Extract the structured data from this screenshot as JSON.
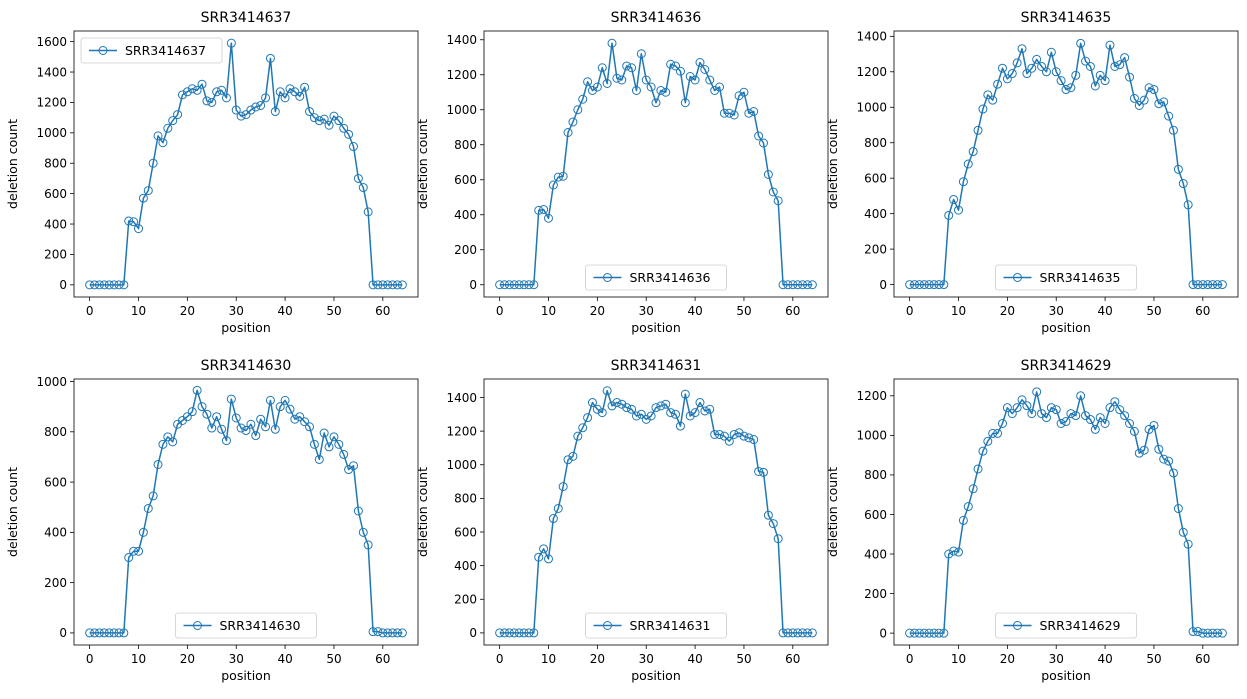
{
  "chart_data": [
    {
      "type": "line",
      "title": "SRR3414637",
      "xlabel": "position",
      "ylabel": "deletion count",
      "legend_position": "upper left",
      "color": "#1f77b4",
      "xlim": [
        -3.2,
        67.2
      ],
      "ylim": [
        -80,
        1670
      ],
      "xticks": [
        0,
        10,
        20,
        30,
        40,
        50,
        60
      ],
      "yticks": [
        0,
        200,
        400,
        600,
        800,
        1000,
        1200,
        1400,
        1600
      ],
      "series": [
        {
          "name": "SRR3414637",
          "x": [
            0,
            1,
            2,
            3,
            4,
            5,
            6,
            7,
            8,
            9,
            10,
            11,
            12,
            13,
            14,
            15,
            16,
            17,
            18,
            19,
            20,
            21,
            22,
            23,
            24,
            25,
            26,
            27,
            28,
            29,
            30,
            31,
            32,
            33,
            34,
            35,
            36,
            37,
            38,
            39,
            40,
            41,
            42,
            43,
            44,
            45,
            46,
            47,
            48,
            49,
            50,
            51,
            52,
            53,
            54,
            55,
            56,
            57,
            58,
            59,
            60,
            61,
            62,
            63,
            64
          ],
          "y": [
            0,
            0,
            0,
            0,
            0,
            0,
            0,
            0,
            420,
            415,
            370,
            570,
            620,
            800,
            980,
            935,
            1030,
            1080,
            1120,
            1250,
            1270,
            1290,
            1280,
            1320,
            1210,
            1200,
            1270,
            1280,
            1230,
            1590,
            1150,
            1110,
            1120,
            1150,
            1170,
            1180,
            1230,
            1490,
            1140,
            1270,
            1230,
            1290,
            1270,
            1240,
            1300,
            1140,
            1100,
            1080,
            1090,
            1050,
            1110,
            1080,
            1030,
            990,
            910,
            700,
            640,
            480,
            0,
            0,
            0,
            0,
            0,
            0,
            0
          ]
        }
      ]
    },
    {
      "type": "line",
      "title": "SRR3414636",
      "xlabel": "position",
      "ylabel": "deletion count",
      "legend_position": "lower center",
      "color": "#1f77b4",
      "xlim": [
        -3.2,
        67.2
      ],
      "ylim": [
        -70,
        1450
      ],
      "xticks": [
        0,
        10,
        20,
        30,
        40,
        50,
        60
      ],
      "yticks": [
        0,
        200,
        400,
        600,
        800,
        1000,
        1200,
        1400
      ],
      "series": [
        {
          "name": "SRR3414636",
          "x": [
            0,
            1,
            2,
            3,
            4,
            5,
            6,
            7,
            8,
            9,
            10,
            11,
            12,
            13,
            14,
            15,
            16,
            17,
            18,
            19,
            20,
            21,
            22,
            23,
            24,
            25,
            26,
            27,
            28,
            29,
            30,
            31,
            32,
            33,
            34,
            35,
            36,
            37,
            38,
            39,
            40,
            41,
            42,
            43,
            44,
            45,
            46,
            47,
            48,
            49,
            50,
            51,
            52,
            53,
            54,
            55,
            56,
            57,
            58,
            59,
            60,
            61,
            62,
            63,
            64
          ],
          "y": [
            0,
            0,
            0,
            0,
            0,
            0,
            0,
            0,
            425,
            430,
            380,
            570,
            615,
            620,
            870,
            930,
            1000,
            1060,
            1160,
            1110,
            1130,
            1240,
            1150,
            1380,
            1180,
            1170,
            1250,
            1240,
            1110,
            1320,
            1170,
            1130,
            1040,
            1110,
            1100,
            1260,
            1250,
            1220,
            1040,
            1190,
            1170,
            1270,
            1230,
            1170,
            1110,
            1130,
            980,
            980,
            970,
            1080,
            1100,
            980,
            990,
            850,
            810,
            630,
            530,
            480,
            0,
            0,
            0,
            0,
            0,
            0,
            0
          ]
        }
      ]
    },
    {
      "type": "line",
      "title": "SRR3414635",
      "xlabel": "position",
      "ylabel": "deletion count",
      "legend_position": "lower center",
      "color": "#1f77b4",
      "xlim": [
        -3.2,
        67.2
      ],
      "ylim": [
        -70,
        1430
      ],
      "xticks": [
        0,
        10,
        20,
        30,
        40,
        50,
        60
      ],
      "yticks": [
        0,
        200,
        400,
        600,
        800,
        1000,
        1200,
        1400
      ],
      "series": [
        {
          "name": "SRR3414635",
          "x": [
            0,
            1,
            2,
            3,
            4,
            5,
            6,
            7,
            8,
            9,
            10,
            11,
            12,
            13,
            14,
            15,
            16,
            17,
            18,
            19,
            20,
            21,
            22,
            23,
            24,
            25,
            26,
            27,
            28,
            29,
            30,
            31,
            32,
            33,
            34,
            35,
            36,
            37,
            38,
            39,
            40,
            41,
            42,
            43,
            44,
            45,
            46,
            47,
            48,
            49,
            50,
            51,
            52,
            53,
            54,
            55,
            56,
            57,
            58,
            59,
            60,
            61,
            62,
            63,
            64
          ],
          "y": [
            0,
            0,
            0,
            0,
            0,
            0,
            0,
            0,
            390,
            480,
            420,
            580,
            680,
            750,
            870,
            990,
            1070,
            1040,
            1130,
            1220,
            1160,
            1190,
            1250,
            1330,
            1190,
            1220,
            1270,
            1230,
            1200,
            1310,
            1200,
            1150,
            1100,
            1110,
            1180,
            1360,
            1260,
            1230,
            1120,
            1180,
            1150,
            1350,
            1230,
            1240,
            1280,
            1170,
            1050,
            1010,
            1040,
            1110,
            1100,
            1020,
            1030,
            950,
            870,
            650,
            570,
            450,
            0,
            0,
            0,
            0,
            0,
            0,
            0
          ]
        }
      ]
    },
    {
      "type": "line",
      "title": "SRR3414630",
      "xlabel": "position",
      "ylabel": "deletion count",
      "legend_position": "lower center",
      "color": "#1f77b4",
      "xlim": [
        -3.2,
        67.2
      ],
      "ylim": [
        -48,
        1010
      ],
      "xticks": [
        0,
        10,
        20,
        30,
        40,
        50,
        60
      ],
      "yticks": [
        0,
        200,
        400,
        600,
        800,
        1000
      ],
      "series": [
        {
          "name": "SRR3414630",
          "x": [
            0,
            1,
            2,
            3,
            4,
            5,
            6,
            7,
            8,
            9,
            10,
            11,
            12,
            13,
            14,
            15,
            16,
            17,
            18,
            19,
            20,
            21,
            22,
            23,
            24,
            25,
            26,
            27,
            28,
            29,
            30,
            31,
            32,
            33,
            34,
            35,
            36,
            37,
            38,
            39,
            40,
            41,
            42,
            43,
            44,
            45,
            46,
            47,
            48,
            49,
            50,
            51,
            52,
            53,
            54,
            55,
            56,
            57,
            58,
            59,
            60,
            61,
            62,
            63,
            64
          ],
          "y": [
            0,
            0,
            0,
            0,
            0,
            0,
            0,
            0,
            300,
            325,
            325,
            400,
            495,
            545,
            670,
            750,
            780,
            760,
            830,
            845,
            860,
            880,
            965,
            900,
            870,
            815,
            860,
            810,
            765,
            930,
            855,
            815,
            805,
            830,
            785,
            850,
            820,
            925,
            810,
            900,
            925,
            890,
            850,
            860,
            840,
            820,
            750,
            690,
            795,
            740,
            780,
            750,
            710,
            650,
            665,
            485,
            400,
            350,
            5,
            5,
            0,
            0,
            0,
            0,
            0
          ]
        }
      ]
    },
    {
      "type": "line",
      "title": "SRR3414631",
      "xlabel": "position",
      "ylabel": "deletion count",
      "legend_position": "lower center",
      "color": "#1f77b4",
      "xlim": [
        -3.2,
        67.2
      ],
      "ylim": [
        -72,
        1510
      ],
      "xticks": [
        0,
        10,
        20,
        30,
        40,
        50,
        60
      ],
      "yticks": [
        0,
        200,
        400,
        600,
        800,
        1000,
        1200,
        1400
      ],
      "series": [
        {
          "name": "SRR3414631",
          "x": [
            0,
            1,
            2,
            3,
            4,
            5,
            6,
            7,
            8,
            9,
            10,
            11,
            12,
            13,
            14,
            15,
            16,
            17,
            18,
            19,
            20,
            21,
            22,
            23,
            24,
            25,
            26,
            27,
            28,
            29,
            30,
            31,
            32,
            33,
            34,
            35,
            36,
            37,
            38,
            39,
            40,
            41,
            42,
            43,
            44,
            45,
            46,
            47,
            48,
            49,
            50,
            51,
            52,
            53,
            54,
            55,
            56,
            57,
            58,
            59,
            60,
            61,
            62,
            63,
            64
          ],
          "y": [
            0,
            0,
            0,
            0,
            0,
            0,
            0,
            0,
            450,
            500,
            440,
            680,
            740,
            870,
            1030,
            1050,
            1170,
            1220,
            1280,
            1370,
            1330,
            1310,
            1440,
            1350,
            1370,
            1360,
            1340,
            1330,
            1290,
            1300,
            1270,
            1290,
            1340,
            1350,
            1360,
            1310,
            1300,
            1230,
            1420,
            1290,
            1310,
            1370,
            1320,
            1330,
            1180,
            1180,
            1170,
            1140,
            1180,
            1190,
            1170,
            1160,
            1150,
            960,
            955,
            700,
            650,
            560,
            0,
            0,
            0,
            0,
            0,
            0,
            0
          ]
        }
      ]
    },
    {
      "type": "line",
      "title": "SRR3414629",
      "xlabel": "position",
      "ylabel": "deletion count",
      "legend_position": "lower center",
      "color": "#1f77b4",
      "xlim": [
        -3.2,
        67.2
      ],
      "ylim": [
        -60,
        1285
      ],
      "xticks": [
        0,
        10,
        20,
        30,
        40,
        50,
        60
      ],
      "yticks": [
        0,
        200,
        400,
        600,
        800,
        1000,
        1200
      ],
      "series": [
        {
          "name": "SRR3414629",
          "x": [
            0,
            1,
            2,
            3,
            4,
            5,
            6,
            7,
            8,
            9,
            10,
            11,
            12,
            13,
            14,
            15,
            16,
            17,
            18,
            19,
            20,
            21,
            22,
            23,
            24,
            25,
            26,
            27,
            28,
            29,
            30,
            31,
            32,
            33,
            34,
            35,
            36,
            37,
            38,
            39,
            40,
            41,
            42,
            43,
            44,
            45,
            46,
            47,
            48,
            49,
            50,
            51,
            52,
            53,
            54,
            55,
            56,
            57,
            58,
            59,
            60,
            61,
            62,
            63,
            64
          ],
          "y": [
            0,
            0,
            0,
            0,
            0,
            0,
            0,
            0,
            400,
            415,
            410,
            570,
            640,
            730,
            830,
            920,
            970,
            1010,
            1010,
            1060,
            1140,
            1110,
            1140,
            1180,
            1150,
            1110,
            1220,
            1110,
            1090,
            1140,
            1130,
            1060,
            1070,
            1110,
            1100,
            1200,
            1100,
            1080,
            1030,
            1090,
            1060,
            1140,
            1170,
            1130,
            1100,
            1060,
            1020,
            910,
            925,
            1030,
            1050,
            930,
            880,
            870,
            810,
            630,
            510,
            450,
            8,
            8,
            0,
            0,
            0,
            0,
            0
          ]
        }
      ]
    }
  ]
}
